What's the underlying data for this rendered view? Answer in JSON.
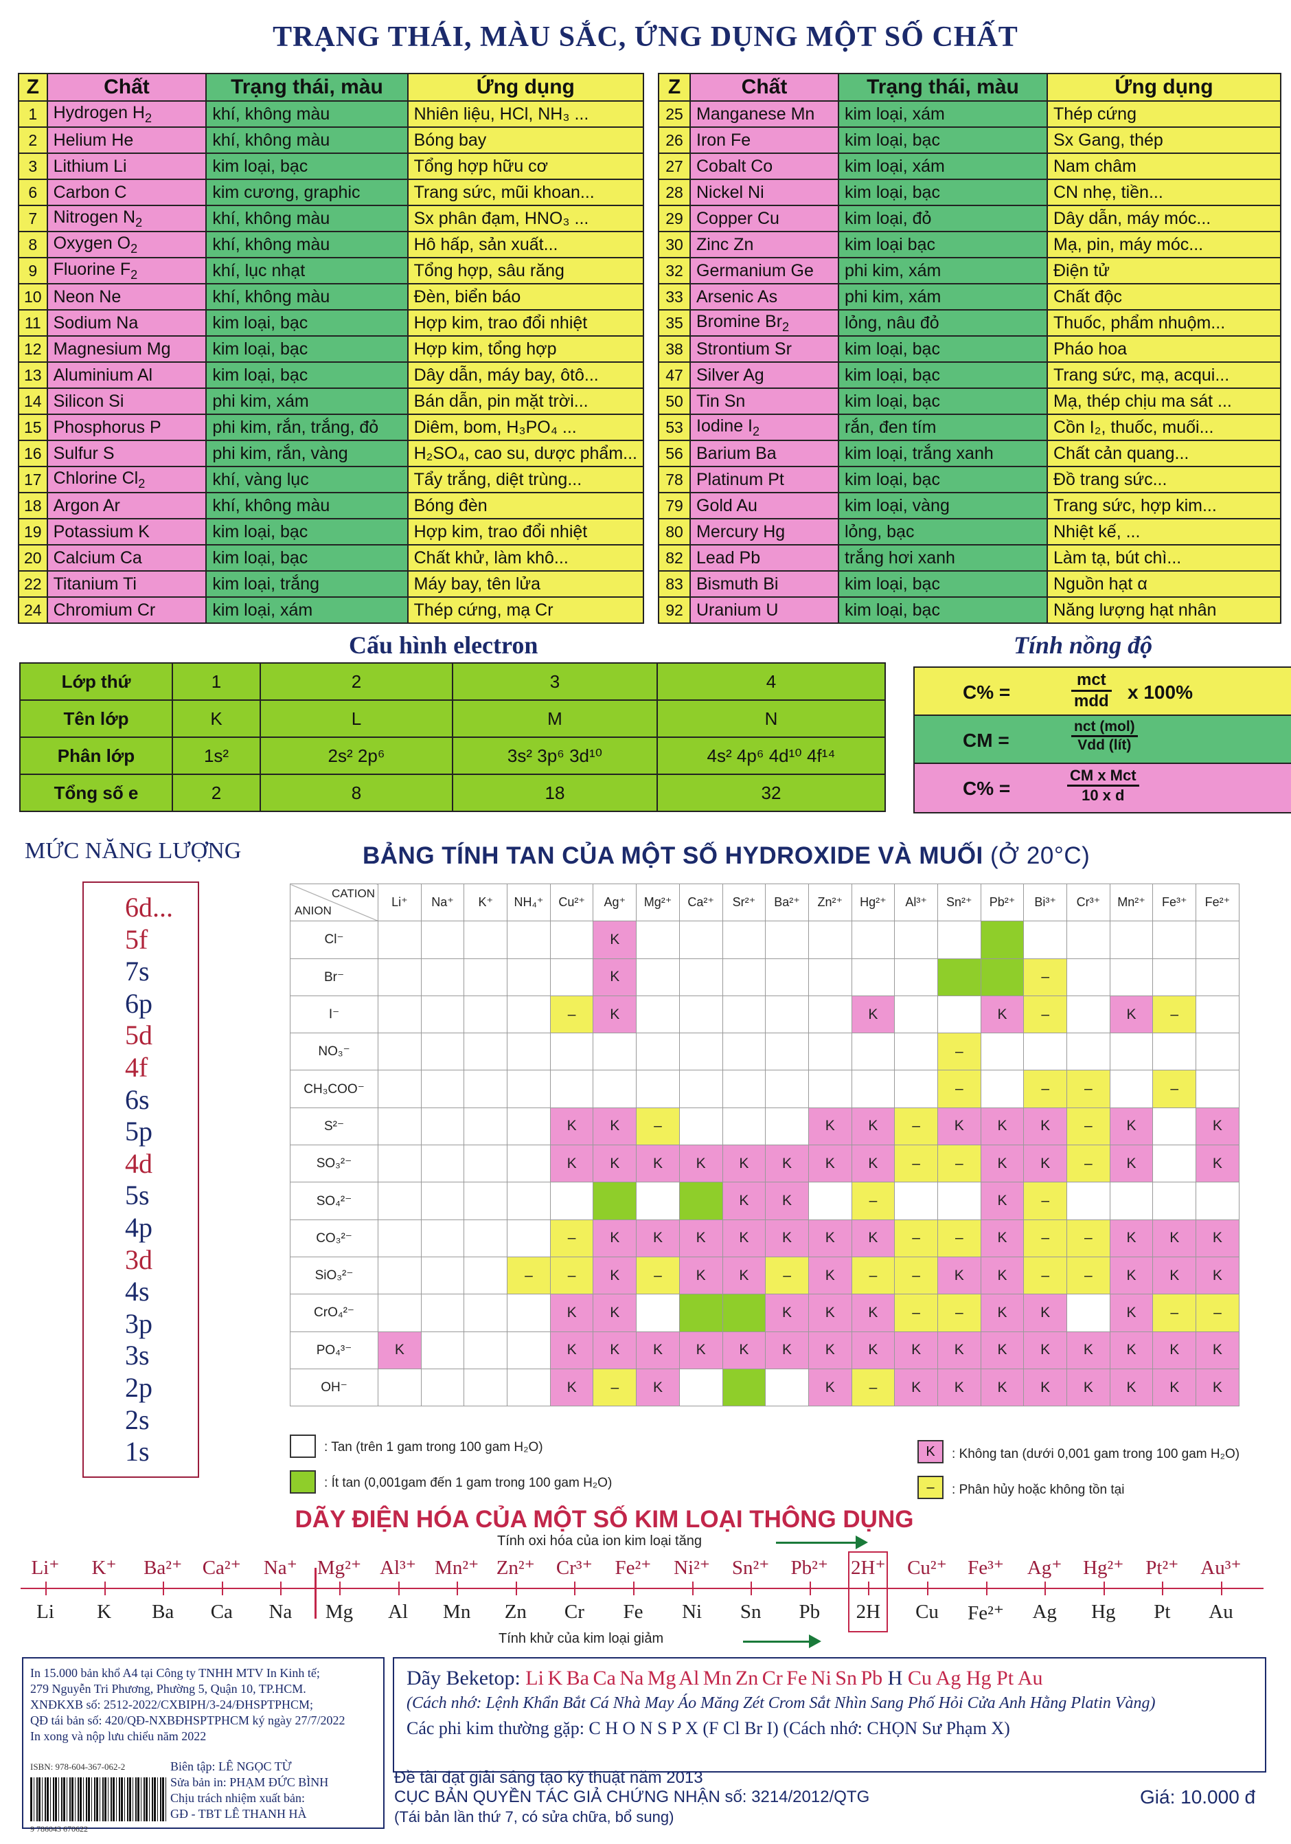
{
  "title": "TRẠNG THÁI, MÀU SẮC, ỨNG DỤNG MỘT SỐ CHẤT",
  "chem_headers": {
    "z": "Z",
    "name": "Chất",
    "state": "Trạng thái, màu",
    "use": "Ứng dụng"
  },
  "left_rows": [
    {
      "z": "1",
      "name": "Hydrogen H",
      "sub": "2",
      "state": "khí, không màu",
      "use": "Nhiên liệu, HCl, NH₃ ..."
    },
    {
      "z": "2",
      "name": "Helium He",
      "sub": "",
      "state": "khí, không màu",
      "use": "Bóng bay"
    },
    {
      "z": "3",
      "name": "Lithium Li",
      "sub": "",
      "state": "kim loại, bạc",
      "use": "Tổng hợp hữu cơ"
    },
    {
      "z": "6",
      "name": "Carbon C",
      "sub": "",
      "state": "kim cương, graphic",
      "use": "Trang sức, mũi khoan..."
    },
    {
      "z": "7",
      "name": "Nitrogen N",
      "sub": "2",
      "state": "khí, không màu",
      "use": "Sx phân đạm, HNO₃ ..."
    },
    {
      "z": "8",
      "name": "Oxygen O",
      "sub": "2",
      "state": "khí, không màu",
      "use": "Hô hấp, sản xuất..."
    },
    {
      "z": "9",
      "name": "Fluorine F",
      "sub": "2",
      "state": "khí, lục nhạt",
      "use": "Tổng hợp, sâu răng"
    },
    {
      "z": "10",
      "name": "Neon Ne",
      "sub": "",
      "state": "khí, không màu",
      "use": "Đèn, biển báo"
    },
    {
      "z": "11",
      "name": "Sodium Na",
      "sub": "",
      "state": "kim loại, bạc",
      "use": "Hợp kim, trao đổi nhiệt"
    },
    {
      "z": "12",
      "name": "Magnesium Mg",
      "sub": "",
      "state": "kim loại, bạc",
      "use": "Hợp kim, tổng hợp"
    },
    {
      "z": "13",
      "name": "Aluminium Al",
      "sub": "",
      "state": "kim loại, bạc",
      "use": "Dây dẫn, máy bay, ôtô..."
    },
    {
      "z": "14",
      "name": "Silicon Si",
      "sub": "",
      "state": "phi kim, xám",
      "use": "Bán dẫn, pin mặt trời..."
    },
    {
      "z": "15",
      "name": "Phosphorus P",
      "sub": "",
      "state": "phi kim, rắn, trắng, đỏ",
      "use": "Diêm, bom, H₃PO₄ ..."
    },
    {
      "z": "16",
      "name": "Sulfur S",
      "sub": "",
      "state": "phi kim, rắn, vàng",
      "use": "H₂SO₄, cao su, dược phẩm..."
    },
    {
      "z": "17",
      "name": "Chlorine Cl",
      "sub": "2",
      "state": "khí, vàng lục",
      "use": "Tẩy trắng, diệt trùng..."
    },
    {
      "z": "18",
      "name": "Argon Ar",
      "sub": "",
      "state": "khí, không màu",
      "use": "Bóng đèn"
    },
    {
      "z": "19",
      "name": "Potassium K",
      "sub": "",
      "state": "kim loại, bạc",
      "use": "Hợp kim, trao đổi nhiệt"
    },
    {
      "z": "20",
      "name": "Calcium Ca",
      "sub": "",
      "state": "kim loại, bạc",
      "use": "Chất khử, làm khô..."
    },
    {
      "z": "22",
      "name": "Titanium Ti",
      "sub": "",
      "state": "kim loại, trắng",
      "use": "Máy bay, tên lửa"
    },
    {
      "z": "24",
      "name": "Chromium Cr",
      "sub": "",
      "state": "kim loại, xám",
      "use": "Thép cứng, mạ Cr"
    }
  ],
  "right_rows": [
    {
      "z": "25",
      "name": "Manganese Mn",
      "sub": "",
      "state": "kim loại, xám",
      "use": "Thép cứng"
    },
    {
      "z": "26",
      "name": "Iron Fe",
      "sub": "",
      "state": "kim loại, bạc",
      "use": "Sx Gang, thép"
    },
    {
      "z": "27",
      "name": "Cobalt Co",
      "sub": "",
      "state": "kim loại, xám",
      "use": "Nam châm"
    },
    {
      "z": "28",
      "name": "Nickel Ni",
      "sub": "",
      "state": "kim loại, bạc",
      "use": "CN nhẹ, tiền..."
    },
    {
      "z": "29",
      "name": "Copper Cu",
      "sub": "",
      "state": "kim loại, đỏ",
      "use": "Dây dẫn, máy móc..."
    },
    {
      "z": "30",
      "name": "Zinc Zn",
      "sub": "",
      "state": "kim loại bạc",
      "use": "Mạ, pin, máy móc..."
    },
    {
      "z": "32",
      "name": "Germanium Ge",
      "sub": "",
      "state": "phi kim, xám",
      "use": "Điện tử"
    },
    {
      "z": "33",
      "name": "Arsenic As",
      "sub": "",
      "state": "phi kim, xám",
      "use": "Chất độc"
    },
    {
      "z": "35",
      "name": "Bromine Br",
      "sub": "2",
      "state": "lỏng, nâu đỏ",
      "use": "Thuốc, phẩm nhuộm..."
    },
    {
      "z": "38",
      "name": "Strontium Sr",
      "sub": "",
      "state": "kim loại, bạc",
      "use": "Pháo hoa"
    },
    {
      "z": "47",
      "name": "Silver Ag",
      "sub": "",
      "state": "kim loại, bạc",
      "use": "Trang sức, mạ, acqui..."
    },
    {
      "z": "50",
      "name": "Tin Sn",
      "sub": "",
      "state": "kim loại, bạc",
      "use": "Mạ, thép chịu ma sát ..."
    },
    {
      "z": "53",
      "name": "Iodine I",
      "sub": "2",
      "state": "rắn, đen tím",
      "use": "Cồn I₂, thuốc, muối..."
    },
    {
      "z": "56",
      "name": "Barium Ba",
      "sub": "",
      "state": "kim loại, trắng xanh",
      "use": "Chất cản quang..."
    },
    {
      "z": "78",
      "name": "Platinum Pt",
      "sub": "",
      "state": "kim loại, bạc",
      "use": "Đồ trang sức..."
    },
    {
      "z": "79",
      "name": "Gold Au",
      "sub": "",
      "state": "kim loại, vàng",
      "use": "Trang sức, hợp kim..."
    },
    {
      "z": "80",
      "name": "Mercury Hg",
      "sub": "",
      "state": "lỏng, bạc",
      "use": "Nhiệt kế, ..."
    },
    {
      "z": "82",
      "name": "Lead Pb",
      "sub": "",
      "state": "trắng hơi xanh",
      "use": "Làm tạ, bút chì..."
    },
    {
      "z": "83",
      "name": "Bismuth Bi",
      "sub": "",
      "state": "kim loại, bạc",
      "use": "Nguồn hạt α"
    },
    {
      "z": "92",
      "name": "Uranium U",
      "sub": "",
      "state": "kim loại, bạc",
      "use": "Năng lượng hạt nhân"
    }
  ],
  "electron": {
    "title": "Cấu hình electron",
    "row_labels": [
      "Lớp thứ",
      "Tên lớp",
      "Phân lớp",
      "Tổng số e"
    ],
    "layers": [
      "1",
      "2",
      "3",
      "4"
    ],
    "names": [
      "K",
      "L",
      "M",
      "N"
    ],
    "sublayers": [
      "1s²",
      "2s² 2p⁶",
      "3s² 3p⁶ 3d¹⁰",
      "4s² 4p⁶ 4d¹⁰ 4f¹⁴"
    ],
    "totals": [
      "2",
      "8",
      "18",
      "32"
    ]
  },
  "concentration": {
    "title": "Tính nồng độ",
    "f1_left": "C% =",
    "f1_num": "mct",
    "f1_den": "mdd",
    "f1_right": "x 100%",
    "f2_left": "CM =",
    "f2_num": "nct (mol)",
    "f2_den": "Vdd (lít)",
    "f3_left": "C% =",
    "f3_num": "CM x Mct",
    "f3_den": "10 x d"
  },
  "energy": {
    "title": "MỨC NĂNG LƯỢNG",
    "levels": [
      "6d...",
      "5f",
      "7s",
      "6p",
      "5d",
      "4f",
      "6s",
      "5p",
      "4d",
      "5s",
      "4p",
      "3d",
      "4s",
      "3p",
      "3s",
      "2p",
      "2s",
      "1s"
    ]
  },
  "solubility": {
    "title": "BẢNG TÍNH TAN CỦA MỘT SỐ HYDROXIDE VÀ MUỐI",
    "title_suffix": "(Ở 20°C)",
    "corner_cation": "CATION",
    "corner_anion": "ANION",
    "cations": [
      "Li⁺",
      "Na⁺",
      "K⁺",
      "NH₄⁺",
      "Cu²⁺",
      "Ag⁺",
      "Mg²⁺",
      "Ca²⁺",
      "Sr²⁺",
      "Ba²⁺",
      "Zn²⁺",
      "Hg²⁺",
      "Al³⁺",
      "Sn²⁺",
      "Pb²⁺",
      "Bi³⁺",
      "Cr³⁺",
      "Mn²⁺",
      "Fe³⁺",
      "Fe²⁺"
    ],
    "anions": [
      "Cl⁻",
      "Br⁻",
      "I⁻",
      "NO₃⁻",
      "CH₃COO⁻",
      "S²⁻",
      "SO₃²⁻",
      "SO₄²⁻",
      "CO₃²⁻",
      "SiO₃²⁻",
      "CrO₄²⁻",
      "PO₄³⁻",
      "OH⁻"
    ],
    "cells": [
      "-----k--------g-----",
      "-----k-------ggy----",
      "----yk-----k--ky-ky-",
      "-------------y------",
      "-------------y-yy-y-",
      "----kky---kkykkkyk-k",
      "----kkkkkkkkyykkyk-k",
      "-----g-gkk-y--ky----",
      "----ykkkkkkkyykyykkk",
      "---yykykkykyykkyykkk",
      "----kk-ggkkkyykk-kyy",
      "k---kkkkkkkkkkkkkkkk",
      "----kyk-g-kykkkkkkkk"
    ],
    "legend": {
      "tan": "Tan (trên 1 gam trong 100 gam H₂O)",
      "it_tan": "Ít tan (0,001gam đến 1 gam trong 100 gam H₂O)",
      "k_mark": "K",
      "khong_tan": "Không tan (dưới 0,001 gam trong 100 gam H₂O)",
      "dash_mark": "–",
      "phan_huy": "Phân hủy hoặc không tồn tại"
    },
    "k_label": "K",
    "dash_label": "–"
  },
  "electrochem": {
    "title": "DÃY ĐIỆN HÓA CỦA MỘT SỐ KIM LOẠI THÔNG DỤNG",
    "oxid_label": "Tính oxi hóa của ion kim loại tăng",
    "red_label": "Tính khử của kim loại giảm",
    "ions": [
      "Li⁺",
      "K⁺",
      "Ba²⁺",
      "Ca²⁺",
      "Na⁺",
      "Mg²⁺",
      "Al³⁺",
      "Mn²⁺",
      "Zn²⁺",
      "Cr³⁺",
      "Fe²⁺",
      "Ni²⁺",
      "Sn²⁺",
      "Pb²⁺",
      "2H⁺",
      "Cu²⁺",
      "Fe³⁺",
      "Ag⁺",
      "Hg²⁺",
      "Pt²⁺",
      "Au³⁺"
    ],
    "metals": [
      "Li",
      "K",
      "Ba",
      "Ca",
      "Na",
      "Mg",
      "Al",
      "Mn",
      "Zn",
      "Cr",
      "Fe",
      "Ni",
      "Sn",
      "Pb",
      "2H",
      "Cu",
      "Fe²⁺",
      "Ag",
      "Hg",
      "Pt",
      "Au"
    ]
  },
  "publisher": {
    "lines": [
      "In 15.000 bản khổ A4 tại Công ty TNHH MTV In Kinh tế;",
      "279 Nguyễn Tri Phương, Phường 5, Quận 10, TP.HCM.",
      "XNĐKXB số: 2512-2022/CXBIPH/3-24/ĐHSPTPHCM;",
      "QĐ tái bản số: 420/QĐ-NXBĐHSPTPHCM ký ngày 27/7/2022",
      "In xong và nộp lưu chiểu năm 2022"
    ],
    "isbn": "ISBN: 978-604-367-062-2",
    "barcode_number": "9 786043 670622",
    "credits": [
      "Biên tập: LÊ NGỌC TỪ",
      "Sửa bản in: PHẠM ĐỨC BÌNH",
      "Chịu trách nhiệm xuất bản:",
      "GĐ - TBT LÊ THANH HÀ"
    ]
  },
  "beketop": {
    "label": "Dãy Beketop:",
    "series": "Li  K  Ba  Ca  Na  Mg  Al  Mn  Zn  Cr  Fe  Ni  Sn  Pb",
    "h": "H",
    "series2": "Cu  Ag  Hg  Pt  Au",
    "mnemonic": "(Cách nhớ: Lệnh Khẩn Bắt Cá Nhà May Áo Măng Zét Crom Sắt Nhìn Sang Phố Hỏi Cửa Anh Hằng Platin Vàng)",
    "nonmetal": "Các phi kim thường gặp: C H O N S P X (F Cl Br I) (Cách nhớ: CHỌN Sư Phạm X)"
  },
  "footer": {
    "award": "Đề tài đạt giải sáng tạo kỹ thuật năm 2013",
    "copyright": "CỤC BẢN QUYỀN TÁC GIẢ CHỨNG NHẬN số: 3214/2012/QTG",
    "reprint": "(Tái bản lần thứ 7, có sửa chữa, bổ sung)",
    "price": "Giá: 10.000 đ"
  },
  "colors": {
    "pink": "#ee96d2",
    "green": "#5cbf7a",
    "yellow": "#f2f05a",
    "lime": "#8fce2a",
    "navy": "#1b2a6b",
    "maroon": "#9a1c3c"
  }
}
